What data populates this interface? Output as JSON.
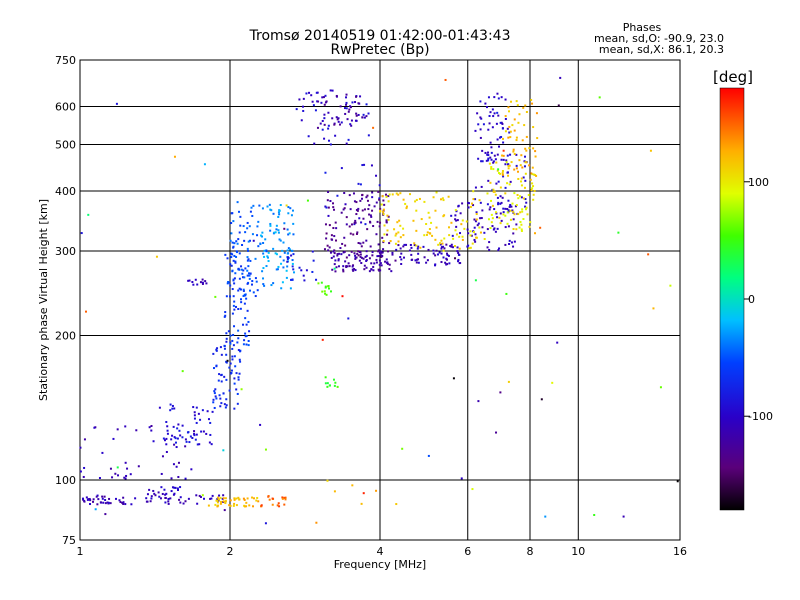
{
  "chart_data": {
    "type": "scatter",
    "title": "Tromsø 20140519 01:42:00-01:43:43",
    "subtitle": "RwPretec (Bp)",
    "xlabel": "Frequency [MHz]",
    "ylabel": "Stationary phase Virtual Height [km]",
    "x_scale": "log",
    "y_scale": "log",
    "xlim": [
      1,
      16
    ],
    "ylim": [
      75,
      750
    ],
    "x_ticks": [
      1,
      2,
      4,
      6,
      8,
      10,
      16
    ],
    "x_tick_labels": [
      "1",
      "2",
      "4",
      "6",
      "8",
      "10",
      "16"
    ],
    "y_ticks": [
      75,
      100,
      200,
      300,
      400,
      500,
      600,
      750
    ],
    "y_tick_labels": [
      "75",
      "100",
      "200",
      "300",
      "400",
      "500",
      "600",
      "750"
    ],
    "grid": true,
    "colorbar": {
      "label": "[deg]",
      "range": [
        -180,
        180
      ],
      "ticks": [
        100,
        0,
        -100
      ],
      "tick_labels": [
        "100",
        "0",
        "-100"
      ],
      "colormap": "rainbow"
    },
    "stats": {
      "heading": "Phases",
      "line1": "mean, sd,O: -90.9, 23.0",
      "line2": "mean, sd,X: 86.1, 20.3"
    },
    "clusters": [
      {
        "x": [
          1.0,
          1.95
        ],
        "y": [
          89,
          93
        ],
        "phase": -110,
        "n": 70
      },
      {
        "x": [
          1.35,
          1.6
        ],
        "y": [
          91,
          97
        ],
        "phase": -100,
        "n": 25
      },
      {
        "x": [
          1.8,
          2.3
        ],
        "y": [
          88,
          92
        ],
        "phase": 120,
        "n": 45
      },
      {
        "x": [
          2.3,
          2.6
        ],
        "y": [
          88,
          93
        ],
        "phase": 150,
        "n": 18
      },
      {
        "x": [
          1.0,
          1.7
        ],
        "y": [
          100,
          130
        ],
        "phase": -110,
        "n": 45
      },
      {
        "x": [
          1.4,
          1.85
        ],
        "y": [
          118,
          145
        ],
        "phase": -90,
        "n": 55
      },
      {
        "x": [
          1.85,
          2.1
        ],
        "y": [
          140,
          200
        ],
        "phase": -70,
        "n": 70
      },
      {
        "x": [
          1.95,
          2.2
        ],
        "y": [
          190,
          300
        ],
        "phase": -60,
        "n": 80
      },
      {
        "x": [
          2.0,
          2.3
        ],
        "y": [
          240,
          380
        ],
        "phase": -50,
        "n": 70
      },
      {
        "x": [
          2.3,
          2.7
        ],
        "y": [
          250,
          380
        ],
        "phase": -30,
        "n": 90
      },
      {
        "x": [
          1.6,
          1.8
        ],
        "y": [
          255,
          262
        ],
        "phase": -110,
        "n": 12
      },
      {
        "x": [
          2.6,
          3.0
        ],
        "y": [
          260,
          300
        ],
        "phase": -80,
        "n": 20
      },
      {
        "x": [
          2.7,
          3.8
        ],
        "y": [
          500,
          650
        ],
        "phase": -95,
        "n": 50
      },
      {
        "x": [
          3.0,
          3.8
        ],
        "y": [
          540,
          640
        ],
        "phase": -120,
        "n": 40
      },
      {
        "x": [
          3.0,
          4.0
        ],
        "y": [
          340,
          460
        ],
        "phase": -90,
        "n": 20
      },
      {
        "x": [
          3.1,
          4.2
        ],
        "y": [
          290,
          400
        ],
        "phase": -130,
        "n": 120
      },
      {
        "x": [
          3.2,
          4.3
        ],
        "y": [
          272,
          300
        ],
        "phase": -120,
        "n": 90
      },
      {
        "x": [
          4.3,
          5.8
        ],
        "y": [
          280,
          310
        ],
        "phase": -110,
        "n": 70
      },
      {
        "x": [
          5.5,
          7.6
        ],
        "y": [
          300,
          380
        ],
        "phase": -105,
        "n": 80
      },
      {
        "x": [
          6.2,
          7.9
        ],
        "y": [
          360,
          480
        ],
        "phase": -95,
        "n": 50
      },
      {
        "x": [
          6.2,
          7.3
        ],
        "y": [
          450,
          640
        ],
        "phase": -100,
        "n": 55
      },
      {
        "x": [
          4.0,
          6.5
        ],
        "y": [
          300,
          400
        ],
        "phase": 110,
        "n": 110
      },
      {
        "x": [
          6.5,
          8.2
        ],
        "y": [
          330,
          460
        ],
        "phase": 100,
        "n": 80
      },
      {
        "x": [
          7.0,
          8.3
        ],
        "y": [
          420,
          620
        ],
        "phase": 120,
        "n": 60
      },
      {
        "x": [
          3.0,
          3.2
        ],
        "y": [
          240,
          260
        ],
        "phase": 60,
        "n": 12
      },
      {
        "x": [
          3.1,
          3.3
        ],
        "y": [
          155,
          165
        ],
        "phase": 50,
        "n": 10
      },
      {
        "x": [
          3.0,
          4.5
        ],
        "y": [
          88,
          100
        ],
        "phase": 120,
        "n": 6
      },
      {
        "x": [
          1.0,
          16.0
        ],
        "y": [
          80,
          700
        ],
        "phase": 0,
        "n": 70,
        "random_phase": true
      }
    ]
  }
}
